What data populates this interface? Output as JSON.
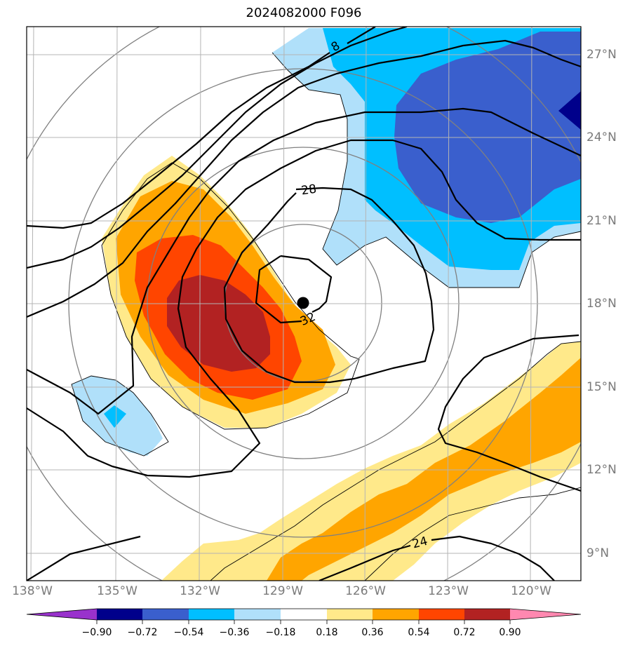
{
  "title": "2024082000 F096",
  "map": {
    "longitude_labels": [
      "138°W",
      "135°W",
      "132°W",
      "129°W",
      "126°W",
      "123°W",
      "120°W"
    ],
    "latitude_labels": [
      "27°N",
      "24°N",
      "21°N",
      "18°N",
      "15°N",
      "12°N",
      "9°N"
    ],
    "storm_center_marker": "black-dot",
    "contour_labels": [
      "8",
      "28",
      "32",
      "24"
    ],
    "field_colors": {
      "strong_negative": "#00008b",
      "negative": "#3a5fcd",
      "moderate_negative": "#00bfff",
      "weak_negative": "#b0e0fa",
      "weak_positive": "#ffe98a",
      "moderate_positive": "#ffa500",
      "positive": "#ff4500",
      "strong_positive": "#b22222"
    }
  },
  "colorbar": {
    "tick_labels": [
      "−0.90",
      "−0.72",
      "−0.54",
      "−0.36",
      "−0.18",
      "0.18",
      "0.36",
      "0.54",
      "0.72",
      "0.90"
    ],
    "colors": [
      "#9932cc",
      "#00008b",
      "#3a5fcd",
      "#00bfff",
      "#b0e0fa",
      "#ffffff",
      "#ffe98a",
      "#ffa500",
      "#ff4500",
      "#b22222",
      "#ff88b0"
    ],
    "extend": "both"
  }
}
